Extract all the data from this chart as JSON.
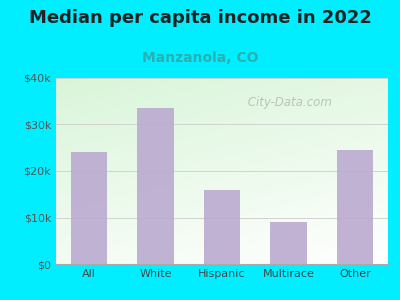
{
  "title": "Median per capita income in 2022",
  "subtitle": "Manzanola, CO",
  "categories": [
    "All",
    "White",
    "Hispanic",
    "Multirace",
    "Other"
  ],
  "values": [
    24000,
    33500,
    16000,
    9000,
    24500
  ],
  "bar_color": "#bbaad0",
  "title_fontsize": 13,
  "subtitle_fontsize": 10,
  "subtitle_color": "#2ab0b0",
  "background_outer": "#00eeff",
  "ylim": [
    0,
    40000
  ],
  "yticks": [
    0,
    10000,
    20000,
    30000,
    40000
  ],
  "ytick_labels": [
    "$0",
    "$10k",
    "$20k",
    "$30k",
    "$40k"
  ],
  "watermark": " City-Data.com"
}
